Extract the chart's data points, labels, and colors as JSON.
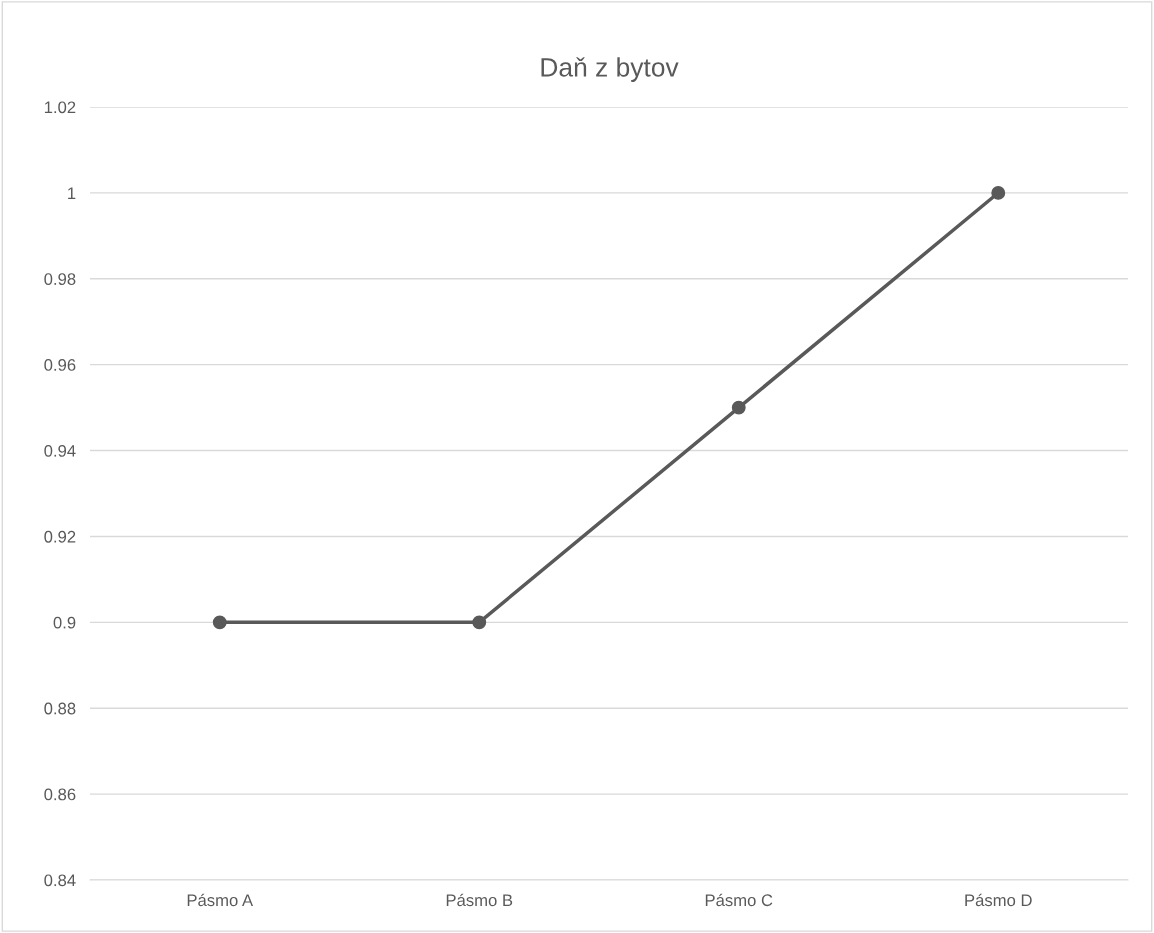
{
  "chart_data": {
    "type": "line",
    "title": "Daň z bytov",
    "categories": [
      "Pásmo A",
      "Pásmo B",
      "Pásmo C",
      "Pásmo D"
    ],
    "series": [
      {
        "color": "#595959",
        "values": [
          0.9,
          0.9,
          0.95,
          1
        ]
      }
    ],
    "ylim": [
      0.84,
      1.02
    ],
    "yticks": [
      0.84,
      0.86,
      0.88,
      0.9,
      0.92,
      0.94,
      0.96,
      0.98,
      1,
      1.02
    ],
    "grid": "y",
    "marker": "circle",
    "line_style": "solid",
    "legend": false
  }
}
